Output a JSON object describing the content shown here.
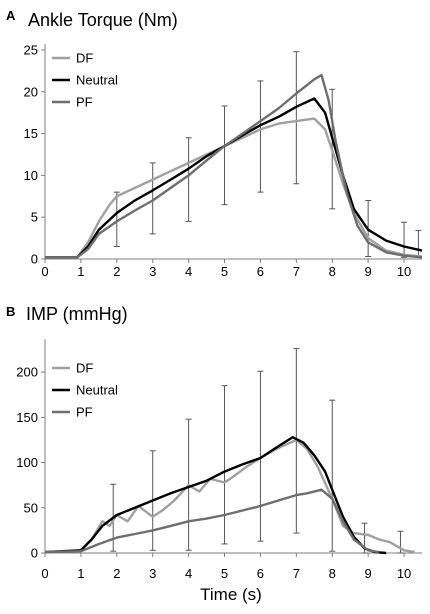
{
  "chart_data": [
    {
      "type": "line",
      "panel": "A",
      "title": "Ankle Torque (Nm)",
      "xlabel": "",
      "ylabel": "",
      "xlim": [
        0,
        10.5
      ],
      "ylim": [
        0,
        25
      ],
      "x_ticks": [
        "0",
        "1",
        "2",
        "3",
        "4",
        "5",
        "6",
        "7",
        "8",
        "9",
        "10"
      ],
      "y_ticks": [
        "0",
        "5",
        "10",
        "15",
        "20",
        "25"
      ],
      "grid": false,
      "legend": "top-left",
      "series": [
        {
          "name": "DF",
          "color": "#a0a0a0",
          "x": [
            0,
            0.9,
            1.2,
            1.5,
            1.8,
            2,
            2.5,
            3,
            3.5,
            4,
            4.5,
            5,
            5.5,
            6,
            6.5,
            7,
            7.5,
            7.8,
            8,
            8.3,
            8.6,
            9,
            9.5,
            10,
            10.5
          ],
          "y": [
            0.2,
            0.2,
            2.0,
            4.5,
            6.5,
            7.5,
            8.5,
            9.5,
            10.5,
            11.5,
            12.5,
            13.5,
            14.5,
            15.5,
            16.2,
            16.5,
            16.8,
            15.5,
            13,
            9,
            5.5,
            2.5,
            1.0,
            0.5,
            0.3
          ]
        },
        {
          "name": "Neutral",
          "color": "#000000",
          "x": [
            0,
            0.9,
            1.2,
            1.5,
            2,
            2.5,
            3,
            3.5,
            4,
            4.5,
            5,
            5.5,
            6,
            6.5,
            7,
            7.5,
            7.8,
            8,
            8.3,
            8.6,
            9,
            9.5,
            10,
            10.5
          ],
          "y": [
            0.2,
            0.2,
            1.5,
            3.5,
            5.5,
            7.0,
            8.2,
            9.5,
            10.8,
            12.3,
            13.5,
            14.8,
            16.0,
            17.0,
            18.2,
            19.2,
            17.5,
            14.5,
            10,
            6,
            3.5,
            2.2,
            1.5,
            1.0
          ]
        },
        {
          "name": "PF",
          "color": "#6e6e6e",
          "x": [
            0,
            0.9,
            1.2,
            1.5,
            2,
            2.5,
            3,
            3.5,
            4,
            4.5,
            5,
            5.5,
            6,
            6.5,
            7,
            7.5,
            7.7,
            7.9,
            8.1,
            8.4,
            8.7,
            9,
            9.5,
            10,
            10.5
          ],
          "y": [
            0.2,
            0.2,
            1.2,
            3.0,
            4.5,
            5.8,
            7.0,
            8.5,
            10.0,
            11.8,
            13.5,
            15.0,
            16.5,
            18.0,
            19.8,
            21.5,
            22.0,
            19,
            14,
            8,
            4,
            2.0,
            0.8,
            0.4,
            0.2
          ]
        }
      ],
      "error_bars": [
        {
          "x": 2,
          "low": 1.5,
          "high": 8.0
        },
        {
          "x": 3,
          "low": 3.0,
          "high": 11.5
        },
        {
          "x": 4,
          "low": 4.5,
          "high": 14.5
        },
        {
          "x": 5,
          "low": 6.5,
          "high": 18.3
        },
        {
          "x": 6,
          "low": 8.0,
          "high": 21.3
        },
        {
          "x": 7,
          "low": 9.0,
          "high": 24.8
        },
        {
          "x": 8,
          "low": 6.0,
          "high": 20.3
        },
        {
          "x": 9,
          "low": 0.3,
          "high": 7.0
        },
        {
          "x": 10,
          "low": 0.2,
          "high": 4.4
        },
        {
          "x": 10.4,
          "low": 0.2,
          "high": 3.4
        }
      ]
    },
    {
      "type": "line",
      "panel": "B",
      "title": "IMP (mmHg)",
      "xlabel": "Time (s)",
      "ylabel": "",
      "xlim": [
        0,
        10.5
      ],
      "ylim": [
        0,
        230
      ],
      "x_ticks": [
        "0",
        "1",
        "2",
        "3",
        "4",
        "5",
        "6",
        "7",
        "8",
        "9",
        "10"
      ],
      "y_ticks": [
        "0",
        "50",
        "100",
        "150",
        "200"
      ],
      "grid": false,
      "legend": "top-left",
      "series": [
        {
          "name": "DF",
          "color": "#a0a0a0",
          "x": [
            0,
            1.0,
            1.3,
            1.6,
            1.8,
            2.0,
            2.3,
            2.6,
            3.0,
            3.3,
            3.6,
            4.0,
            4.3,
            4.6,
            5.0,
            5.3,
            5.6,
            6.0,
            6.3,
            6.6,
            7.0,
            7.3,
            7.6,
            8.0,
            8.3,
            8.6,
            9.0,
            9.3,
            9.6,
            10.0,
            10.3
          ],
          "y": [
            1,
            3,
            15,
            35,
            30,
            42,
            35,
            52,
            40,
            48,
            58,
            75,
            68,
            82,
            78,
            86,
            95,
            105,
            112,
            118,
            125,
            115,
            95,
            60,
            30,
            22,
            20,
            15,
            12,
            3,
            1
          ]
        },
        {
          "name": "Neutral",
          "color": "#000000",
          "x": [
            0,
            1.0,
            1.3,
            1.6,
            2.0,
            2.5,
            3.0,
            3.5,
            4.0,
            4.5,
            5.0,
            5.5,
            6.0,
            6.5,
            6.9,
            7.2,
            7.5,
            7.8,
            8.0,
            8.3,
            8.6,
            8.9,
            9.2,
            9.5
          ],
          "y": [
            1,
            3,
            15,
            30,
            42,
            50,
            58,
            66,
            73,
            80,
            90,
            98,
            105,
            118,
            128,
            122,
            108,
            90,
            70,
            40,
            18,
            5,
            1,
            0
          ]
        },
        {
          "name": "PF",
          "color": "#6e6e6e",
          "x": [
            0,
            1.0,
            1.5,
            2.0,
            2.5,
            3.0,
            3.5,
            4.0,
            4.5,
            5.0,
            5.5,
            6.0,
            6.5,
            7.0,
            7.3,
            7.7,
            8.0,
            8.3,
            8.6,
            9.0,
            9.3
          ],
          "y": [
            1,
            2,
            10,
            17,
            21,
            25,
            30,
            35,
            38,
            42,
            47,
            52,
            58,
            64,
            66,
            70,
            60,
            35,
            15,
            3,
            1
          ]
        }
      ],
      "error_bars": [
        {
          "x": 1.9,
          "low": 2,
          "high": 76
        },
        {
          "x": 3,
          "low": 3,
          "high": 113
        },
        {
          "x": 4,
          "low": 3,
          "high": 148
        },
        {
          "x": 5,
          "low": 10,
          "high": 185
        },
        {
          "x": 6,
          "low": 13,
          "high": 201
        },
        {
          "x": 7,
          "low": 22,
          "high": 226
        },
        {
          "x": 8,
          "low": 2,
          "high": 169
        },
        {
          "x": 8.9,
          "low": 0,
          "high": 33
        },
        {
          "x": 9.9,
          "low": 0,
          "high": 24
        }
      ]
    }
  ]
}
